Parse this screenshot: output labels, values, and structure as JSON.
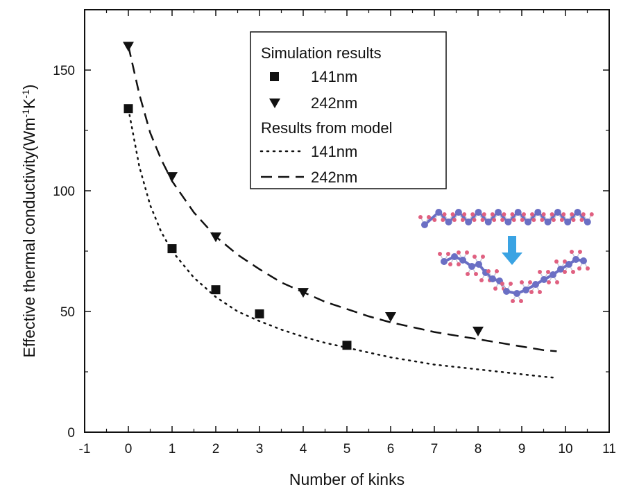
{
  "chart_data": {
    "type": "scatter",
    "xlabel": "Number of kinks",
    "ylabel": "Effective thermal conductivity(Wm",
    "ylabel_sup1": "-1",
    "ylabel_mid": "K",
    "ylabel_sup2": "-1",
    "ylabel_end": ")",
    "xlim": [
      -1,
      11
    ],
    "ylim": [
      0,
      175
    ],
    "xticks": [
      -1,
      0,
      1,
      2,
      3,
      4,
      5,
      6,
      7,
      8,
      9,
      10,
      11
    ],
    "yticks": [
      0,
      50,
      100,
      150
    ],
    "grid": false,
    "legend": {
      "position": "top-center",
      "heading1": "Simulation results",
      "heading2": "Results from model"
    },
    "series": [
      {
        "name": "141nm",
        "kind": "simulation",
        "marker": "square",
        "x": [
          0,
          1,
          2,
          3,
          5
        ],
        "y": [
          134,
          76,
          59,
          49,
          36
        ]
      },
      {
        "name": "242nm",
        "kind": "simulation",
        "marker": "triangle-down",
        "x": [
          0,
          1,
          2,
          4,
          6,
          8
        ],
        "y": [
          160,
          106,
          81,
          58,
          48,
          42
        ]
      },
      {
        "name": "141nm",
        "kind": "model",
        "style": "dotted",
        "x": [
          0,
          0.25,
          0.5,
          0.75,
          1,
          1.5,
          2,
          2.5,
          3,
          3.5,
          4,
          4.5,
          5,
          5.5,
          6,
          6.5,
          7,
          7.5,
          8,
          8.5,
          9,
          9.5,
          9.8
        ],
        "y": [
          134,
          110,
          94,
          83,
          75,
          64,
          56,
          50,
          46,
          42.5,
          39.5,
          37,
          35,
          33,
          31,
          29.5,
          28,
          27,
          26,
          25,
          24,
          23,
          22.5
        ]
      },
      {
        "name": "242nm",
        "kind": "model",
        "style": "dashed",
        "x": [
          0,
          0.25,
          0.5,
          0.75,
          1,
          1.5,
          2,
          2.5,
          3,
          3.5,
          4,
          4.5,
          5,
          5.5,
          6,
          6.5,
          7,
          7.5,
          8,
          8.5,
          9,
          9.5,
          9.8
        ],
        "y": [
          160,
          140,
          124,
          113,
          104,
          91,
          81,
          73.5,
          67.5,
          62,
          58,
          54,
          51,
          48,
          45.5,
          43.5,
          41.5,
          40,
          38.5,
          37,
          35.5,
          34,
          33.5
        ]
      }
    ],
    "inset": {
      "description": "molecular chain illustration: straight chain converting to kinked chain",
      "arrow_color": "#3aa3e3",
      "carbon_color": "#6a6fc4",
      "hydrogen_color": "#e06080"
    }
  }
}
